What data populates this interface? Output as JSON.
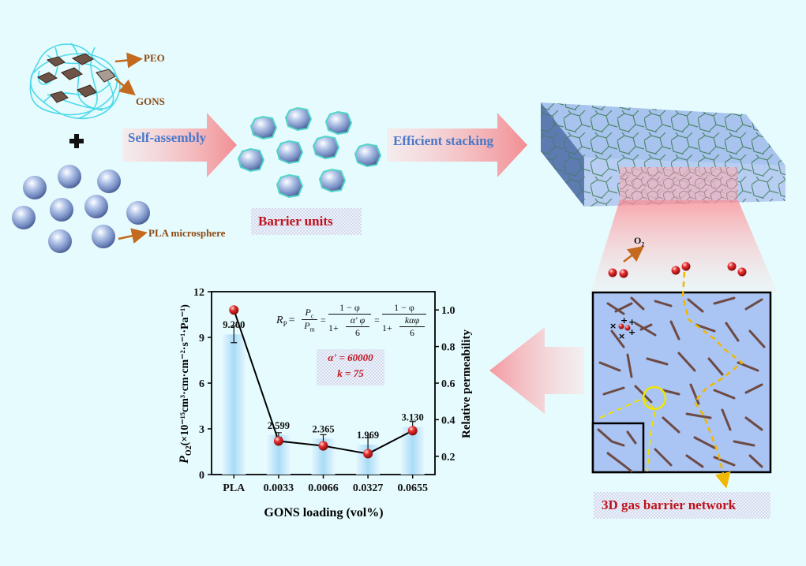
{
  "labels": {
    "peo": "PEO",
    "gons": "GONS",
    "pla_microsphere": "PLA microsphere",
    "self_assembly": "Self-assembly",
    "barrier_units": "Barrier units",
    "efficient_stacking": "Efficient stacking",
    "o2": "O",
    "o2_sub": "2",
    "gas_barrier_network": "3D gas barrier network"
  },
  "equation": {
    "lhs": "R",
    "lhs_sub": "P",
    "eq": "=",
    "pc": "P",
    "pc_sub": "c",
    "pm": "P",
    "pm_sub": "m",
    "one_minus_phi": "1 − φ",
    "denom1_lead": "1+",
    "denom1_num": "α' φ",
    "denom1_den": "6",
    "denom2_lead": "1+",
    "denom2_num": "kαφ",
    "denom2_den": "6"
  },
  "params": {
    "alpha": "α' = 60000",
    "k": "k = 75"
  },
  "chart_data": {
    "type": "bar",
    "categories": [
      "PLA",
      "0.0033",
      "0.0066",
      "0.0327",
      "0.0655"
    ],
    "series": [
      {
        "values": [
          9.2,
          2.599,
          2.365,
          1.969,
          3.13
        ],
        "labels": [
          "9.200",
          "2.599",
          "2.365",
          "1.969",
          "3.130"
        ],
        "errors": [
          0.55,
          0.15,
          0.25,
          0.45,
          0.35
        ]
      },
      {
        "values": [
          1.0,
          0.283,
          0.257,
          0.214,
          0.34
        ]
      }
    ],
    "xlabel": "GONS loading (vol%)",
    "ylabel_main": "P",
    "ylabel_sub": "O2",
    "ylabel_rest": "(×10⁻¹⁵cm³·cm·cm⁻²·s⁻¹·Pa⁻¹)",
    "ylabel_right": "Relative permeability",
    "ylim": [
      0,
      12
    ],
    "y_ticks": [
      "0",
      "3",
      "6",
      "9",
      "12"
    ],
    "y2lim": [
      0.1,
      1.1
    ],
    "y2_ticks": [
      "0.2",
      "0.4",
      "0.6",
      "0.8",
      "1.0"
    ],
    "colors": {
      "bar": "#bfe6fa",
      "point": "#e02020",
      "line": "#000000"
    }
  }
}
